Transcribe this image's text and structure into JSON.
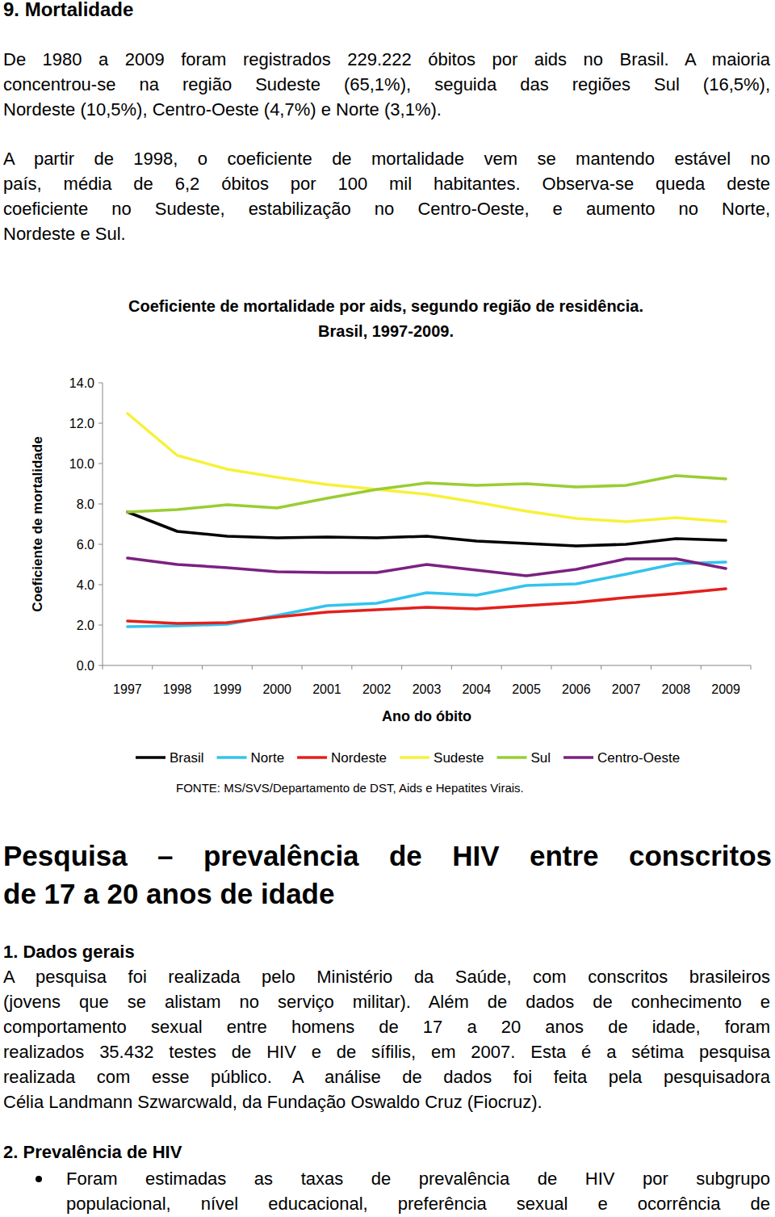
{
  "header": {
    "title": "9. Mortalidade"
  },
  "mortality_paragraphs": [
    [
      "De 1980 a 2009 foram registrados 229.222 óbitos por aids no Brasil. A maioria",
      "concentrou-se na região Sudeste (65,1%), seguida das regiões Sul (16,5%),",
      "Nordeste (10,5%), Centro-Oeste (4,7%) e Norte (3,1%)."
    ],
    [
      "A partir de 1998, o coeficiente de mortalidade vem se mantendo estável no",
      "país, média de 6,2 óbitos por 100 mil habitantes. Observa-se queda deste",
      "coeficiente no Sudeste, estabilização no Centro-Oeste, e aumento no Norte,",
      "Nordeste e Sul."
    ]
  ],
  "chart_data": {
    "type": "line",
    "title": "Coeficiente de mortalidade por aids, segundo região de residência. Brasil, 1997-2009.",
    "x_label": "Ano do óbito",
    "y_label": "Coeficiente de mortalidade",
    "categories": [
      "1997",
      "1998",
      "1999",
      "2000",
      "2001",
      "2002",
      "2003",
      "2004",
      "2005",
      "2006",
      "2007",
      "2008",
      "2009"
    ],
    "series": [
      {
        "name": "Brasil",
        "color": "#000000",
        "values": [
          7.6,
          6.64,
          6.4,
          6.32,
          6.36,
          6.32,
          6.4,
          6.16,
          6.04,
          5.92,
          6.0,
          6.28,
          6.2
        ]
      },
      {
        "name": "Norte",
        "color": "#33c3ec",
        "values": [
          1.92,
          1.96,
          2.04,
          2.48,
          2.96,
          3.08,
          3.6,
          3.48,
          3.96,
          4.04,
          4.52,
          5.04,
          5.12
        ]
      },
      {
        "name": "Nordeste",
        "color": "#e3201b",
        "values": [
          2.2,
          2.08,
          2.12,
          2.4,
          2.64,
          2.76,
          2.88,
          2.8,
          2.96,
          3.12,
          3.36,
          3.56,
          3.8
        ]
      },
      {
        "name": "Sudeste",
        "color": "#f7f13a",
        "values": [
          12.48,
          10.4,
          9.72,
          9.32,
          8.96,
          8.72,
          8.48,
          8.08,
          7.64,
          7.28,
          7.12,
          7.32,
          7.12
        ]
      },
      {
        "name": "Sul",
        "color": "#9acd32",
        "values": [
          7.6,
          7.72,
          7.96,
          7.8,
          8.28,
          8.72,
          9.04,
          8.92,
          9.0,
          8.84,
          8.92,
          9.4,
          9.24
        ]
      },
      {
        "name": "Centro-Oeste",
        "color": "#7b2180",
        "values": [
          5.32,
          5.0,
          4.84,
          4.64,
          4.6,
          4.6,
          5.0,
          4.72,
          4.44,
          4.76,
          5.28,
          5.28,
          4.8
        ]
      }
    ],
    "ylim": [
      0,
      14
    ],
    "yticks": [
      {
        "value": 0,
        "label": "0.0"
      },
      {
        "value": 2,
        "label": "2.0"
      },
      {
        "value": 4,
        "label": "4.0"
      },
      {
        "value": 6,
        "label": "6.0"
      },
      {
        "value": 8,
        "label": "8.0"
      },
      {
        "value": 10,
        "label": "10.0"
      },
      {
        "value": 12,
        "label": "12.0"
      },
      {
        "value": 14,
        "label": "14.0"
      }
    ],
    "grid": false,
    "legend": "bottom"
  },
  "chart_source": "FONTE: MS/SVS/Departamento de DST, Aids e Hepatites Virais.",
  "survey": {
    "title_lines": [
      "Pesquisa – prevalência de HIV entre conscritos",
      "de 17 a 20 anos de idade"
    ],
    "section1": {
      "title": "1. Dados gerais",
      "lines": [
        "A pesquisa foi realizada pelo Ministério da Saúde, com conscritos brasileiros",
        "(jovens que se alistam no serviço militar). Além de dados de conhecimento e",
        "comportamento sexual entre homens de 17 a 20 anos de idade, foram",
        "realizados 35.432 testes de HIV e de sífilis, em 2007. Esta é a sétima pesquisa",
        "realizada com esse público. A análise de dados foi feita pela pesquisadora",
        "Célia Landmann Szwarcwald, da Fundação Oswaldo Cruz (Fiocruz)."
      ]
    },
    "section2": {
      "title": "2. Prevalência de HIV",
      "bullets": [
        [
          "Foram estimadas as taxas de prevalência de HIV por subgrupo",
          "populacional, nível educacional, preferência sexual e ocorrência de"
        ]
      ]
    }
  }
}
